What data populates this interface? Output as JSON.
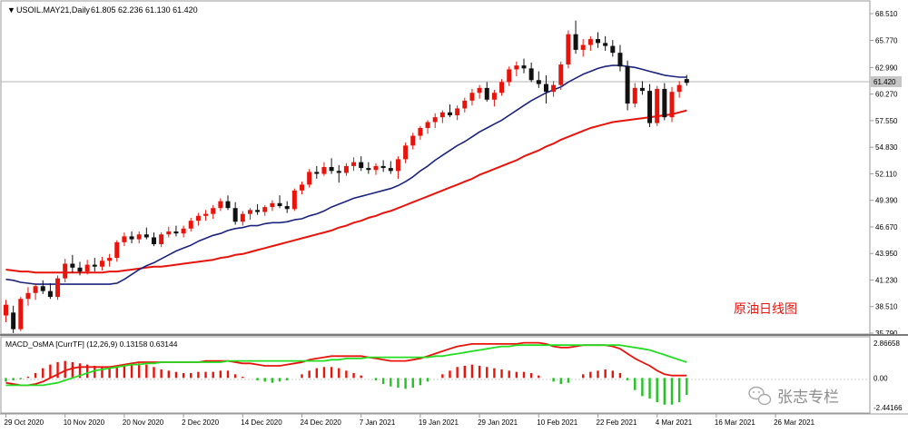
{
  "header": {
    "symbol_line": "USOIL.MAY21,Daily",
    "ohlc_line": "61.805 62.236 61.130 61.420",
    "current_price": "61.420"
  },
  "watermark": "原油日线图",
  "branding": "张志专栏",
  "price_axis": {
    "labels": [
      "68.510",
      "65.770",
      "62.990",
      "61.420",
      "60.270",
      "57.550",
      "54.830",
      "52.110",
      "49.390",
      "46.670",
      "43.950",
      "41.230",
      "38.510",
      "35.790"
    ]
  },
  "indicator": {
    "title": "MACD_OsMA [CurrTF] (12,26,9) 0.13158 0.63144",
    "axis_labels": [
      "2.86658",
      "0.00",
      "-2.44166"
    ]
  },
  "time_axis": {
    "labels": [
      "29 Oct 2020",
      "10 Nov 2020",
      "20 Nov 2020",
      "2 Dec 2020",
      "14 Dec 2020",
      "24 Dec 2020",
      "7 Jan 2021",
      "19 Jan 2021",
      "29 Jan 2021",
      "10 Feb 2021",
      "22 Feb 2021",
      "4 Mar 2021",
      "16 Mar 2021",
      "26 Mar 2021"
    ]
  },
  "chart_data": [
    {
      "type": "candlestick",
      "symbol": "USOIL.MAY21",
      "timeframe": "Daily",
      "ylim": [
        35.79,
        68.51
      ],
      "last_bar": {
        "open": 61.805,
        "high": 62.236,
        "low": 61.13,
        "close": 61.42
      },
      "bars": [
        [
          37.6,
          39.2,
          36.9,
          38.7
        ],
        [
          37.9,
          38.6,
          35.8,
          36.2
        ],
        [
          36.2,
          39.5,
          36.0,
          39.3
        ],
        [
          39.3,
          40.5,
          38.6,
          39.9
        ],
        [
          39.9,
          40.9,
          39.2,
          40.6
        ],
        [
          40.6,
          41.2,
          39.8,
          40.1
        ],
        [
          40.1,
          40.9,
          39.3,
          39.5
        ],
        [
          39.5,
          41.7,
          39.2,
          41.4
        ],
        [
          41.4,
          43.4,
          41.0,
          42.9
        ],
        [
          42.9,
          43.8,
          42.0,
          42.5
        ],
        [
          42.5,
          43.1,
          41.7,
          42.1
        ],
        [
          42.1,
          43.3,
          41.8,
          42.8
        ],
        [
          42.8,
          43.5,
          42.1,
          42.6
        ],
        [
          42.6,
          43.6,
          42.2,
          43.2
        ],
        [
          43.2,
          43.9,
          42.6,
          43.5
        ],
        [
          43.5,
          45.3,
          43.1,
          45.1
        ],
        [
          45.1,
          46.1,
          44.7,
          45.7
        ],
        [
          45.7,
          46.2,
          45.0,
          45.4
        ],
        [
          45.4,
          46.2,
          45.0,
          45.9
        ],
        [
          45.9,
          46.6,
          45.4,
          45.6
        ],
        [
          45.6,
          46.1,
          44.7,
          44.9
        ],
        [
          44.9,
          46.1,
          44.6,
          45.9
        ],
        [
          45.9,
          46.7,
          45.6,
          46.2
        ],
        [
          46.2,
          46.8,
          45.7,
          46.0
        ],
        [
          46.0,
          46.8,
          45.6,
          46.5
        ],
        [
          46.5,
          47.6,
          46.2,
          47.3
        ],
        [
          47.3,
          48.1,
          46.8,
          47.8
        ],
        [
          47.8,
          48.4,
          47.3,
          48.0
        ],
        [
          48.0,
          48.9,
          47.5,
          48.6
        ],
        [
          48.6,
          49.6,
          48.3,
          49.3
        ],
        [
          49.3,
          49.9,
          48.4,
          48.6
        ],
        [
          48.6,
          49.2,
          46.9,
          47.2
        ],
        [
          47.2,
          48.3,
          46.8,
          48.0
        ],
        [
          48.0,
          48.6,
          47.4,
          48.4
        ],
        [
          48.4,
          49.0,
          47.9,
          48.2
        ],
        [
          48.2,
          48.9,
          47.8,
          48.7
        ],
        [
          48.7,
          49.4,
          48.3,
          49.1
        ],
        [
          49.1,
          49.9,
          48.6,
          48.8
        ],
        [
          48.8,
          49.3,
          48.1,
          48.5
        ],
        [
          48.5,
          50.6,
          48.3,
          50.4
        ],
        [
          50.4,
          51.3,
          50.0,
          51.0
        ],
        [
          51.0,
          52.6,
          50.7,
          52.3
        ],
        [
          52.3,
          52.9,
          51.6,
          52.1
        ],
        [
          52.1,
          53.3,
          51.9,
          52.8
        ],
        [
          52.8,
          53.7,
          52.1,
          52.4
        ],
        [
          52.4,
          53.0,
          51.2,
          52.2
        ],
        [
          52.2,
          53.2,
          51.9,
          52.9
        ],
        [
          52.9,
          53.8,
          52.4,
          53.3
        ],
        [
          53.3,
          53.9,
          52.4,
          52.7
        ],
        [
          52.7,
          53.3,
          52.1,
          52.5
        ],
        [
          52.5,
          53.2,
          52.0,
          52.9
        ],
        [
          52.9,
          53.5,
          52.3,
          52.7
        ],
        [
          52.7,
          53.4,
          52.1,
          52.4
        ],
        [
          52.4,
          53.9,
          51.6,
          53.6
        ],
        [
          53.6,
          55.3,
          53.2,
          55.0
        ],
        [
          55.0,
          56.3,
          54.6,
          56.0
        ],
        [
          56.0,
          57.0,
          55.6,
          56.8
        ],
        [
          56.8,
          57.6,
          56.2,
          57.4
        ],
        [
          57.4,
          58.3,
          56.8,
          57.9
        ],
        [
          57.9,
          58.6,
          57.3,
          58.4
        ],
        [
          58.4,
          59.2,
          57.9,
          58.1
        ],
        [
          58.1,
          59.1,
          57.6,
          58.8
        ],
        [
          58.8,
          59.9,
          58.4,
          59.6
        ],
        [
          59.6,
          60.8,
          59.1,
          60.4
        ],
        [
          60.4,
          61.2,
          59.8,
          60.9
        ],
        [
          60.9,
          61.5,
          59.5,
          59.7
        ],
        [
          59.7,
          60.7,
          59.0,
          60.4
        ],
        [
          60.4,
          61.8,
          60.1,
          61.5
        ],
        [
          61.5,
          63.1,
          61.1,
          62.8
        ],
        [
          62.8,
          63.6,
          62.1,
          63.2
        ],
        [
          63.2,
          63.9,
          62.4,
          62.9
        ],
        [
          62.9,
          63.5,
          61.5,
          61.7
        ],
        [
          61.7,
          62.6,
          60.9,
          61.3
        ],
        [
          61.3,
          62.2,
          59.3,
          60.5
        ],
        [
          60.5,
          61.6,
          60.0,
          61.2
        ],
        [
          61.2,
          63.6,
          60.7,
          63.3
        ],
        [
          63.3,
          66.8,
          62.9,
          66.4
        ],
        [
          66.4,
          67.8,
          64.4,
          64.8
        ],
        [
          64.8,
          65.9,
          64.1,
          65.3
        ],
        [
          65.3,
          66.2,
          64.7,
          65.9
        ],
        [
          65.9,
          66.6,
          65.0,
          65.5
        ],
        [
          65.5,
          66.2,
          64.7,
          65.2
        ],
        [
          65.2,
          65.8,
          64.1,
          64.5
        ],
        [
          64.5,
          65.3,
          62.6,
          63.1
        ],
        [
          63.1,
          63.7,
          58.6,
          59.3
        ],
        [
          59.3,
          61.4,
          58.9,
          60.9
        ],
        [
          60.9,
          61.6,
          60.2,
          60.6
        ],
        [
          60.6,
          61.3,
          56.9,
          57.3
        ],
        [
          57.3,
          61.1,
          57.0,
          60.8
        ],
        [
          60.8,
          61.4,
          57.6,
          57.9
        ],
        [
          57.9,
          61.0,
          57.4,
          60.5
        ],
        [
          60.5,
          61.6,
          59.9,
          61.2
        ],
        [
          61.805,
          62.236,
          61.13,
          61.42
        ]
      ],
      "moving_averages": [
        {
          "period": 20,
          "method": "SMA",
          "color": "#1a237e",
          "values": [
            41.3,
            41.2,
            41.0,
            40.9,
            40.8,
            40.8,
            40.8,
            40.8,
            40.8,
            40.8,
            40.8,
            40.8,
            40.8,
            40.8,
            40.8,
            40.9,
            41.3,
            41.8,
            42.3,
            42.7,
            43.0,
            43.4,
            43.8,
            44.2,
            44.5,
            44.8,
            45.2,
            45.5,
            45.8,
            46.0,
            46.3,
            46.5,
            46.6,
            46.8,
            46.8,
            47.0,
            47.1,
            47.1,
            47.2,
            47.4,
            47.5,
            47.8,
            48.0,
            48.3,
            48.7,
            49.0,
            49.3,
            49.6,
            49.8,
            50.0,
            50.2,
            50.4,
            50.6,
            50.9,
            51.3,
            51.8,
            52.4,
            52.9,
            53.5,
            54.0,
            54.5,
            55.0,
            55.4,
            55.9,
            56.4,
            56.8,
            57.2,
            57.6,
            58.1,
            58.6,
            59.1,
            59.6,
            60.0,
            60.4,
            60.7,
            61.0,
            61.5,
            61.9,
            62.3,
            62.6,
            62.9,
            63.1,
            63.2,
            63.2,
            63.1,
            63.0,
            62.8,
            62.6,
            62.4,
            62.2,
            62.1,
            62.0,
            62.0
          ]
        },
        {
          "period": 50,
          "method": "SMA",
          "color": "#e8140c",
          "values": [
            42.3,
            42.2,
            42.1,
            42.1,
            42.0,
            42.0,
            42.0,
            42.0,
            42.0,
            42.0,
            42.0,
            42.0,
            42.0,
            42.0,
            42.1,
            42.1,
            42.2,
            42.3,
            42.4,
            42.5,
            42.6,
            42.6,
            42.7,
            42.8,
            42.9,
            43.0,
            43.1,
            43.2,
            43.3,
            43.5,
            43.6,
            43.8,
            43.9,
            44.1,
            44.3,
            44.5,
            44.7,
            44.9,
            45.1,
            45.3,
            45.5,
            45.7,
            45.9,
            46.1,
            46.3,
            46.6,
            46.8,
            47.1,
            47.3,
            47.6,
            47.8,
            48.1,
            48.3,
            48.6,
            48.9,
            49.2,
            49.5,
            49.8,
            50.1,
            50.4,
            50.7,
            51.0,
            51.3,
            51.6,
            52.0,
            52.3,
            52.6,
            52.9,
            53.2,
            53.5,
            53.9,
            54.2,
            54.5,
            54.9,
            55.2,
            55.6,
            55.9,
            56.2,
            56.5,
            56.8,
            57.0,
            57.2,
            57.4,
            57.5,
            57.6,
            57.7,
            57.8,
            57.9,
            58.0,
            58.1,
            58.2,
            58.4,
            58.6
          ]
        }
      ]
    },
    {
      "type": "histogram",
      "title": "MACD_OsMA [CurrTF] (12,26,9) 0.13158 0.63144",
      "ylim": [
        -2.44166,
        2.86658
      ],
      "histogram": [
        -0.3,
        -0.2,
        -0.1,
        0.1,
        0.4,
        0.8,
        1.1,
        1.3,
        1.4,
        1.3,
        1.2,
        1.1,
        1.0,
        0.9,
        0.8,
        0.9,
        1.1,
        1.2,
        1.2,
        1.1,
        0.9,
        0.7,
        0.6,
        0.5,
        0.4,
        0.4,
        0.5,
        0.5,
        0.5,
        0.6,
        0.6,
        0.3,
        0.1,
        0.0,
        -0.2,
        -0.3,
        -0.4,
        -0.3,
        -0.2,
        0.0,
        0.3,
        0.6,
        0.8,
        0.9,
        0.9,
        0.8,
        0.6,
        0.4,
        0.2,
        0.0,
        -0.2,
        -0.5,
        -0.7,
        -0.8,
        -0.9,
        -0.8,
        -0.6,
        -0.3,
        0.0,
        0.3,
        0.6,
        0.9,
        1.0,
        1.1,
        1.0,
        0.9,
        0.8,
        0.7,
        0.6,
        0.5,
        0.5,
        0.4,
        0.2,
        0.0,
        -0.3,
        -0.5,
        -0.4,
        0.0,
        0.3,
        0.5,
        0.6,
        0.7,
        0.6,
        0.4,
        -0.2,
        -1.0,
        -1.5,
        -1.7,
        -2.0,
        -2.2,
        -2.2,
        -2.0,
        -1.4
      ],
      "macd": [
        -0.4,
        -0.5,
        -0.6,
        -0.6,
        -0.5,
        -0.3,
        0.0,
        0.3,
        0.6,
        0.8,
        0.9,
        0.9,
        0.9,
        0.9,
        0.9,
        1.0,
        1.1,
        1.2,
        1.3,
        1.3,
        1.3,
        1.3,
        1.3,
        1.3,
        1.3,
        1.3,
        1.3,
        1.4,
        1.4,
        1.4,
        1.4,
        1.3,
        1.2,
        1.2,
        1.1,
        1.0,
        1.0,
        1.0,
        1.1,
        1.2,
        1.3,
        1.5,
        1.6,
        1.7,
        1.8,
        1.8,
        1.8,
        1.8,
        1.8,
        1.7,
        1.6,
        1.5,
        1.4,
        1.4,
        1.4,
        1.5,
        1.6,
        1.8,
        2.0,
        2.2,
        2.4,
        2.6,
        2.7,
        2.8,
        2.8,
        2.8,
        2.8,
        2.8,
        2.8,
        2.8,
        2.9,
        2.9,
        2.9,
        2.8,
        2.6,
        2.5,
        2.5,
        2.6,
        2.7,
        2.7,
        2.7,
        2.7,
        2.6,
        2.4,
        2.0,
        1.6,
        1.3,
        1.0,
        0.6,
        0.3,
        0.2,
        0.2,
        0.2
      ],
      "signal": [
        -0.6,
        -0.6,
        -0.6,
        -0.6,
        -0.6,
        -0.6,
        -0.5,
        -0.4,
        -0.2,
        0.0,
        0.2,
        0.4,
        0.6,
        0.7,
        0.8,
        0.9,
        1.0,
        1.1,
        1.1,
        1.2,
        1.2,
        1.3,
        1.3,
        1.3,
        1.3,
        1.3,
        1.3,
        1.3,
        1.3,
        1.3,
        1.4,
        1.4,
        1.4,
        1.4,
        1.4,
        1.4,
        1.4,
        1.4,
        1.4,
        1.4,
        1.4,
        1.4,
        1.4,
        1.4,
        1.5,
        1.5,
        1.6,
        1.6,
        1.6,
        1.7,
        1.7,
        1.7,
        1.7,
        1.7,
        1.7,
        1.7,
        1.7,
        1.7,
        1.8,
        1.8,
        1.9,
        2.0,
        2.1,
        2.2,
        2.3,
        2.4,
        2.5,
        2.6,
        2.6,
        2.7,
        2.7,
        2.7,
        2.7,
        2.7,
        2.7,
        2.7,
        2.7,
        2.7,
        2.7,
        2.7,
        2.7,
        2.7,
        2.7,
        2.7,
        2.6,
        2.5,
        2.4,
        2.3,
        2.1,
        1.9,
        1.7,
        1.5,
        1.3
      ]
    }
  ]
}
